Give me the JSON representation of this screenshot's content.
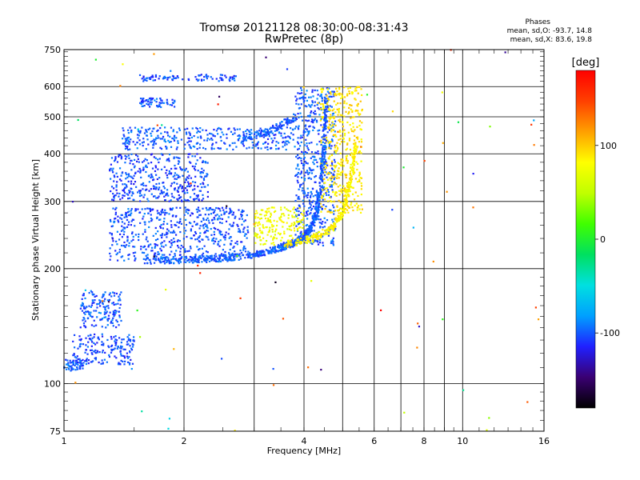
{
  "chart_data": {
    "type": "scatter",
    "title": "Tromsø 20121128 08:30:00-08:31:43",
    "subtitle": "RwPretec (8p)",
    "xlabel": "Frequency [MHz]",
    "ylabel": "Stationary phase Virtual Height [km]",
    "x_scale": "log",
    "y_scale": "log",
    "xlim": [
      1,
      16
    ],
    "ylim": [
      75,
      750
    ],
    "x_ticks": [
      "1",
      "2",
      "4",
      "6",
      "8",
      "10",
      "16"
    ],
    "y_ticks": [
      "75",
      "100",
      "200",
      "300",
      "400",
      "500",
      "600",
      "750"
    ],
    "grid": true,
    "colorbar": {
      "label": "[deg]",
      "range": [
        -180,
        180
      ],
      "ticks": [
        "100",
        "0",
        "-100"
      ],
      "colors": [
        "#000000",
        "#3a0072",
        "#2020ff",
        "#00a0ff",
        "#00e0e0",
        "#00e060",
        "#40ff00",
        "#c0ff00",
        "#ffff00",
        "#ffa000",
        "#ff4000",
        "#ff0000"
      ]
    },
    "phase_stats": {
      "title": "Phases",
      "o_mode": "mean, sd,O: -93.7, 14.8",
      "x_mode": "mean, sd,X: 83.6, 19.8"
    },
    "clusters": [
      {
        "freq": [
          1.0,
          1.12
        ],
        "height": [
          108,
          116
        ],
        "phase": -100
      },
      {
        "freq": [
          1.05,
          1.5
        ],
        "height": [
          112,
          135
        ],
        "phase": -105
      },
      {
        "freq": [
          1.1,
          1.4
        ],
        "height": [
          140,
          175
        ],
        "phase": -100
      },
      {
        "freq": [
          1.3,
          2.9
        ],
        "height": [
          210,
          290
        ],
        "phase": -102
      },
      {
        "freq": [
          1.3,
          2.3
        ],
        "height": [
          300,
          400
        ],
        "phase": -105
      },
      {
        "freq": [
          1.4,
          3.8
        ],
        "height": [
          410,
          470
        ],
        "phase": -100
      },
      {
        "freq": [
          1.55,
          2.7
        ],
        "height": [
          620,
          645
        ],
        "phase": -105
      },
      {
        "freq": [
          1.55,
          1.9
        ],
        "height": [
          530,
          560
        ],
        "phase": -100
      },
      {
        "freq": [
          3.8,
          4.8
        ],
        "height": [
          230,
          600
        ],
        "phase": -100
      },
      {
        "freq": [
          4.4,
          5.6
        ],
        "height": [
          280,
          600
        ],
        "phase": 90
      },
      {
        "freq": [
          3.0,
          4.0
        ],
        "height": [
          230,
          290
        ],
        "phase": 75
      }
    ],
    "trace": {
      "freq": [
        1.6,
        2.0,
        2.5,
        3.0,
        3.4,
        3.7,
        3.95,
        4.15,
        4.3,
        4.4,
        4.5,
        4.55
      ],
      "height": [
        210,
        211,
        213,
        218,
        225,
        232,
        240,
        255,
        280,
        330,
        420,
        560
      ],
      "phase": -100
    },
    "x_trace": {
      "freq": [
        3.6,
        4.2,
        4.7,
        5.0,
        5.2,
        5.4
      ],
      "height": [
        232,
        240,
        255,
        280,
        330,
        420
      ],
      "phase": 85
    },
    "upper_trace": {
      "freq": [
        2.8,
        3.2,
        3.5,
        3.8
      ],
      "height": [
        440,
        455,
        475,
        500
      ],
      "phase": -100
    }
  }
}
